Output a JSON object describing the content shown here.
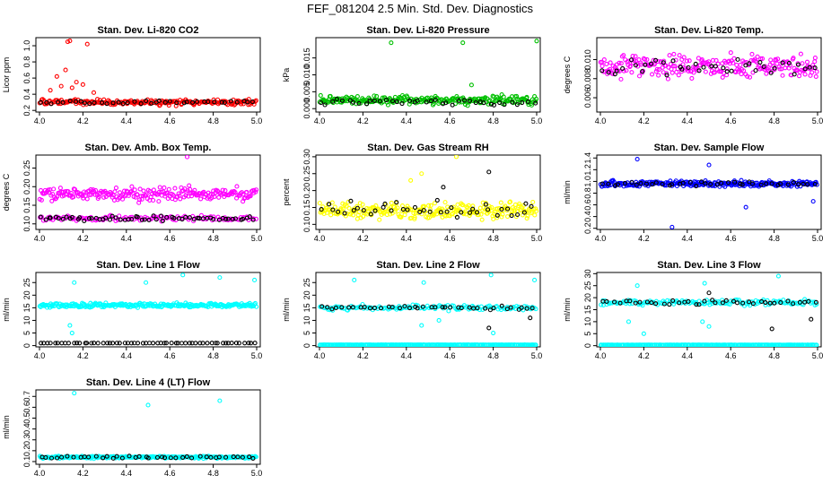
{
  "figure_title": "FEF_081204  2.5 Min. Std. Dev. Diagnostics",
  "chart_data": [
    {
      "id": "co2",
      "type": "scatter",
      "title": "Stan. Dev. Li-820 CO2",
      "ylabel": "Licor ppm",
      "xlim": [
        4.0,
        5.0
      ],
      "ylim": [
        0.18,
        1.1
      ],
      "x_ticks": [
        "4.0",
        "4.2",
        "4.4",
        "4.6",
        "4.8",
        "5.0"
      ],
      "y_ticks": [
        {
          "v": 0.2,
          "label": "0.2"
        },
        {
          "v": 0.4,
          "label": "0.4"
        },
        {
          "v": 0.6,
          "label": "0.6"
        },
        {
          "v": 0.8,
          "label": "0.8"
        },
        {
          "v": 1.0,
          "label": "1.0"
        }
      ],
      "series": [
        {
          "name": "series-1",
          "color": "#ff0000",
          "base": 0.3,
          "spread": 0.05,
          "count": 220,
          "outliers": [
            {
              "x": 4.13,
              "y": 1.05
            },
            {
              "x": 4.22,
              "y": 1.02
            },
            {
              "x": 4.14,
              "y": 1.06
            },
            {
              "x": 4.08,
              "y": 0.62
            },
            {
              "x": 4.12,
              "y": 0.7
            },
            {
              "x": 4.17,
              "y": 0.55
            },
            {
              "x": 4.05,
              "y": 0.45
            },
            {
              "x": 4.1,
              "y": 0.5
            },
            {
              "x": 4.2,
              "y": 0.52
            },
            {
              "x": 4.15,
              "y": 0.48
            },
            {
              "x": 4.25,
              "y": 0.42
            }
          ]
        },
        {
          "name": "series-2",
          "color": "#000000",
          "base": 0.3,
          "spread": 0.03,
          "count": 40,
          "outliers": []
        }
      ]
    },
    {
      "id": "pressure",
      "type": "scatter",
      "title": "Stan. Dev. Li-820 Pressure",
      "ylabel": "kPa",
      "xlim": [
        4.0,
        5.0
      ],
      "ylim": [
        -0.001,
        0.021
      ],
      "x_ticks": [
        "4.0",
        "4.2",
        "4.4",
        "4.6",
        "4.8",
        "5.0"
      ],
      "y_ticks": [
        {
          "v": 0.0,
          "label": "0.000"
        },
        {
          "v": 0.005,
          "label": "0.005"
        },
        {
          "v": 0.01,
          "label": "0.010"
        },
        {
          "v": 0.015,
          "label": "0.015"
        }
      ],
      "series": [
        {
          "name": "series-1",
          "color": "#00c000",
          "base": 0.0025,
          "spread": 0.0018,
          "count": 240,
          "outliers": [
            {
              "x": 4.33,
              "y": 0.0195
            },
            {
              "x": 4.66,
              "y": 0.0195
            },
            {
              "x": 5.0,
              "y": 0.02
            },
            {
              "x": 4.7,
              "y": 0.007
            }
          ]
        },
        {
          "name": "series-2",
          "color": "#000000",
          "base": 0.002,
          "spread": 0.0015,
          "count": 40,
          "outliers": []
        }
      ]
    },
    {
      "id": "temp",
      "type": "scatter",
      "title": "Stan. Dev. Li-820 Temp.",
      "ylabel": "degrees C",
      "xlim": [
        4.0,
        5.0
      ],
      "ylim": [
        0.0045,
        0.0123
      ],
      "x_ticks": [
        "4.0",
        "4.2",
        "4.4",
        "4.6",
        "4.8",
        "5.0"
      ],
      "y_ticks": [
        {
          "v": 0.006,
          "label": "0.006"
        },
        {
          "v": 0.008,
          "label": "0.008"
        },
        {
          "v": 0.01,
          "label": "0.010"
        }
      ],
      "series": [
        {
          "name": "series-1",
          "color": "#ff00ff",
          "base": 0.0093,
          "spread": 0.0017,
          "count": 240,
          "outliers": []
        },
        {
          "name": "series-2",
          "color": "#000000",
          "base": 0.0092,
          "spread": 0.0012,
          "count": 40,
          "outliers": []
        }
      ]
    },
    {
      "id": "ambbox",
      "type": "scatter",
      "title": "Stan. Dev. Amb. Box Temp.",
      "ylabel": "degrees C",
      "xlim": [
        4.0,
        5.0
      ],
      "ylim": [
        0.085,
        0.285
      ],
      "x_ticks": [
        "4.0",
        "4.2",
        "4.4",
        "4.6",
        "4.8",
        "5.0"
      ],
      "y_ticks": [
        {
          "v": 0.1,
          "label": "0.10"
        },
        {
          "v": 0.15,
          "label": "0.15"
        },
        {
          "v": 0.2,
          "label": "0.20"
        },
        {
          "v": 0.25,
          "label": "0.25"
        }
      ],
      "series": [
        {
          "name": "series-1",
          "color": "#ff00ff",
          "base": 0.18,
          "spread": 0.025,
          "count": 240,
          "outliers": [
            {
              "x": 4.68,
              "y": 0.28
            }
          ]
        },
        {
          "name": "series-2",
          "color": "#ff00ff",
          "base": 0.115,
          "spread": 0.01,
          "count": 120,
          "outliers": []
        },
        {
          "name": "series-3",
          "color": "#000000",
          "base": 0.115,
          "spread": 0.01,
          "count": 60,
          "outliers": []
        }
      ]
    },
    {
      "id": "rh",
      "type": "scatter",
      "title": "Stan. Dev. Gas Stream RH",
      "ylabel": "percent",
      "xlim": [
        4.0,
        5.0
      ],
      "ylim": [
        0.085,
        0.305
      ],
      "x_ticks": [
        "4.0",
        "4.2",
        "4.4",
        "4.6",
        "4.8",
        "5.0"
      ],
      "y_ticks": [
        {
          "v": 0.1,
          "label": "0.10"
        },
        {
          "v": 0.15,
          "label": "0.15"
        },
        {
          "v": 0.2,
          "label": "0.20"
        },
        {
          "v": 0.25,
          "label": "0.25"
        },
        {
          "v": 0.3,
          "label": "0.30"
        }
      ],
      "series": [
        {
          "name": "series-1",
          "color": "#ffff00",
          "base": 0.14,
          "spread": 0.035,
          "count": 260,
          "outliers": [
            {
              "x": 4.63,
              "y": 0.3
            },
            {
              "x": 4.47,
              "y": 0.25
            },
            {
              "x": 4.42,
              "y": 0.23
            }
          ]
        },
        {
          "name": "series-2",
          "color": "#000000",
          "base": 0.14,
          "spread": 0.04,
          "count": 40,
          "outliers": [
            {
              "x": 4.78,
              "y": 0.255
            },
            {
              "x": 4.57,
              "y": 0.21
            }
          ]
        }
      ]
    },
    {
      "id": "sample",
      "type": "scatter",
      "title": "Stan. Dev. Sample Flow",
      "ylabel": "ml/min",
      "xlim": [
        4.0,
        5.0
      ],
      "ylim": [
        0.18,
        1.45
      ],
      "x_ticks": [
        "4.0",
        "4.2",
        "4.4",
        "4.6",
        "4.8",
        "5.0"
      ],
      "y_ticks": [
        {
          "v": 0.2,
          "label": "0.2"
        },
        {
          "v": 0.4,
          "label": "0.4"
        },
        {
          "v": 0.6,
          "label": "0.6"
        },
        {
          "v": 0.8,
          "label": "0.8"
        },
        {
          "v": 1.0,
          "label": "1.0"
        },
        {
          "v": 1.2,
          "label": "1.2"
        },
        {
          "v": 1.4,
          "label": "1.4"
        }
      ],
      "series": [
        {
          "name": "series-1",
          "color": "#0000ff",
          "base": 0.96,
          "spread": 0.07,
          "count": 260,
          "outliers": [
            {
              "x": 4.17,
              "y": 1.38
            },
            {
              "x": 4.5,
              "y": 1.28
            },
            {
              "x": 4.33,
              "y": 0.22
            },
            {
              "x": 4.67,
              "y": 0.56
            },
            {
              "x": 4.98,
              "y": 0.66
            }
          ]
        },
        {
          "name": "series-2",
          "color": "#000000",
          "base": 0.96,
          "spread": 0.05,
          "count": 40,
          "outliers": []
        }
      ]
    },
    {
      "id": "line1",
      "type": "scatter",
      "title": "Stan. Dev. Line 1 Flow",
      "ylabel": "ml/min",
      "xlim": [
        4.0,
        5.0
      ],
      "ylim": [
        -0.5,
        29
      ],
      "x_ticks": [
        "4.0",
        "4.2",
        "4.4",
        "4.6",
        "4.8",
        "5.0"
      ],
      "y_ticks": [
        {
          "v": 0,
          "label": "0"
        },
        {
          "v": 5,
          "label": "5"
        },
        {
          "v": 10,
          "label": "10"
        },
        {
          "v": 15,
          "label": "15"
        },
        {
          "v": 20,
          "label": "20"
        },
        {
          "v": 25,
          "label": "25"
        }
      ],
      "series": [
        {
          "name": "series-1",
          "color": "#00ffff",
          "base": 16,
          "spread": 1.3,
          "count": 260,
          "outliers": [
            {
              "x": 4.16,
              "y": 25
            },
            {
              "x": 4.49,
              "y": 25
            },
            {
              "x": 4.66,
              "y": 28
            },
            {
              "x": 4.83,
              "y": 27
            },
            {
              "x": 4.99,
              "y": 26
            },
            {
              "x": 4.14,
              "y": 8
            },
            {
              "x": 4.15,
              "y": 5
            }
          ]
        },
        {
          "name": "series-2",
          "color": "#000000",
          "base": 1,
          "spread": 0.05,
          "count": 60,
          "outliers": []
        }
      ]
    },
    {
      "id": "line2",
      "type": "scatter",
      "title": "Stan. Dev. Line 2 Flow",
      "ylabel": "ml/min",
      "xlim": [
        4.0,
        5.0
      ],
      "ylim": [
        -0.5,
        29
      ],
      "x_ticks": [
        "4.0",
        "4.2",
        "4.4",
        "4.6",
        "4.8",
        "5.0"
      ],
      "y_ticks": [
        {
          "v": 0,
          "label": "0"
        },
        {
          "v": 5,
          "label": "5"
        },
        {
          "v": 10,
          "label": "10"
        },
        {
          "v": 15,
          "label": "15"
        },
        {
          "v": 20,
          "label": "20"
        },
        {
          "v": 25,
          "label": "25"
        }
      ],
      "series": [
        {
          "name": "series-1",
          "color": "#00ffff",
          "base": 15,
          "spread": 1.5,
          "count": 140,
          "outliers": [
            {
              "x": 4.48,
              "y": 25
            },
            {
              "x": 4.79,
              "y": 28
            },
            {
              "x": 4.99,
              "y": 26
            },
            {
              "x": 4.16,
              "y": 26
            },
            {
              "x": 4.47,
              "y": 8
            },
            {
              "x": 4.8,
              "y": 5
            },
            {
              "x": 4.55,
              "y": 10
            }
          ]
        },
        {
          "name": "series-2",
          "color": "#00ffff",
          "base": 0.3,
          "spread": 0.05,
          "count": 200,
          "outliers": []
        },
        {
          "name": "series-3",
          "color": "#000000",
          "base": 15,
          "spread": 1,
          "count": 40,
          "outliers": [
            {
              "x": 4.78,
              "y": 7
            },
            {
              "x": 4.97,
              "y": 11
            }
          ]
        }
      ]
    },
    {
      "id": "line3",
      "type": "scatter",
      "title": "Stan. Dev. Line 3 Flow",
      "ylabel": "ml/min",
      "xlim": [
        4.0,
        5.0
      ],
      "ylim": [
        -0.5,
        30.5
      ],
      "x_ticks": [
        "4.0",
        "4.2",
        "4.4",
        "4.6",
        "4.8",
        "5.0"
      ],
      "y_ticks": [
        {
          "v": 0,
          "label": "0"
        },
        {
          "v": 5,
          "label": "5"
        },
        {
          "v": 10,
          "label": "10"
        },
        {
          "v": 15,
          "label": "15"
        },
        {
          "v": 20,
          "label": "20"
        },
        {
          "v": 25,
          "label": "25"
        },
        {
          "v": 30,
          "label": "30"
        }
      ],
      "series": [
        {
          "name": "series-1",
          "color": "#00ffff",
          "base": 18,
          "spread": 1.8,
          "count": 150,
          "outliers": [
            {
              "x": 4.17,
              "y": 25
            },
            {
              "x": 4.48,
              "y": 26
            },
            {
              "x": 4.82,
              "y": 29
            },
            {
              "x": 4.13,
              "y": 10
            },
            {
              "x": 4.2,
              "y": 5
            },
            {
              "x": 4.47,
              "y": 10
            },
            {
              "x": 4.5,
              "y": 8
            }
          ]
        },
        {
          "name": "series-2",
          "color": "#00ffff",
          "base": 0.3,
          "spread": 0.05,
          "count": 200,
          "outliers": []
        },
        {
          "name": "series-3",
          "color": "#000000",
          "base": 18,
          "spread": 1.2,
          "count": 40,
          "outliers": [
            {
              "x": 4.79,
              "y": 7
            },
            {
              "x": 4.97,
              "y": 11
            },
            {
              "x": 4.5,
              "y": 22
            }
          ]
        }
      ]
    },
    {
      "id": "line4",
      "type": "scatter",
      "title": "Stan. Dev. Line 4 (LT) Flow",
      "ylabel": "ml/min",
      "xlim": [
        4.0,
        5.0
      ],
      "ylim": [
        0.075,
        0.76
      ],
      "x_ticks": [
        "4.0",
        "4.2",
        "4.4",
        "4.6",
        "4.8",
        "5.0"
      ],
      "y_ticks": [
        {
          "v": 0.1,
          "label": "0.1"
        },
        {
          "v": 0.2,
          "label": "0.2"
        },
        {
          "v": 0.3,
          "label": "0.3"
        },
        {
          "v": 0.4,
          "label": "0.4"
        },
        {
          "v": 0.5,
          "label": "0.5"
        },
        {
          "v": 0.6,
          "label": "0.6"
        },
        {
          "v": 0.7,
          "label": "0.7"
        }
      ],
      "series": [
        {
          "name": "series-1",
          "color": "#00ffff",
          "base": 0.14,
          "spread": 0.015,
          "count": 260,
          "outliers": [
            {
              "x": 4.16,
              "y": 0.73
            },
            {
              "x": 4.5,
              "y": 0.62
            },
            {
              "x": 4.83,
              "y": 0.66
            }
          ]
        },
        {
          "name": "series-2",
          "color": "#000000",
          "base": 0.14,
          "spread": 0.015,
          "count": 40,
          "outliers": []
        }
      ]
    }
  ]
}
